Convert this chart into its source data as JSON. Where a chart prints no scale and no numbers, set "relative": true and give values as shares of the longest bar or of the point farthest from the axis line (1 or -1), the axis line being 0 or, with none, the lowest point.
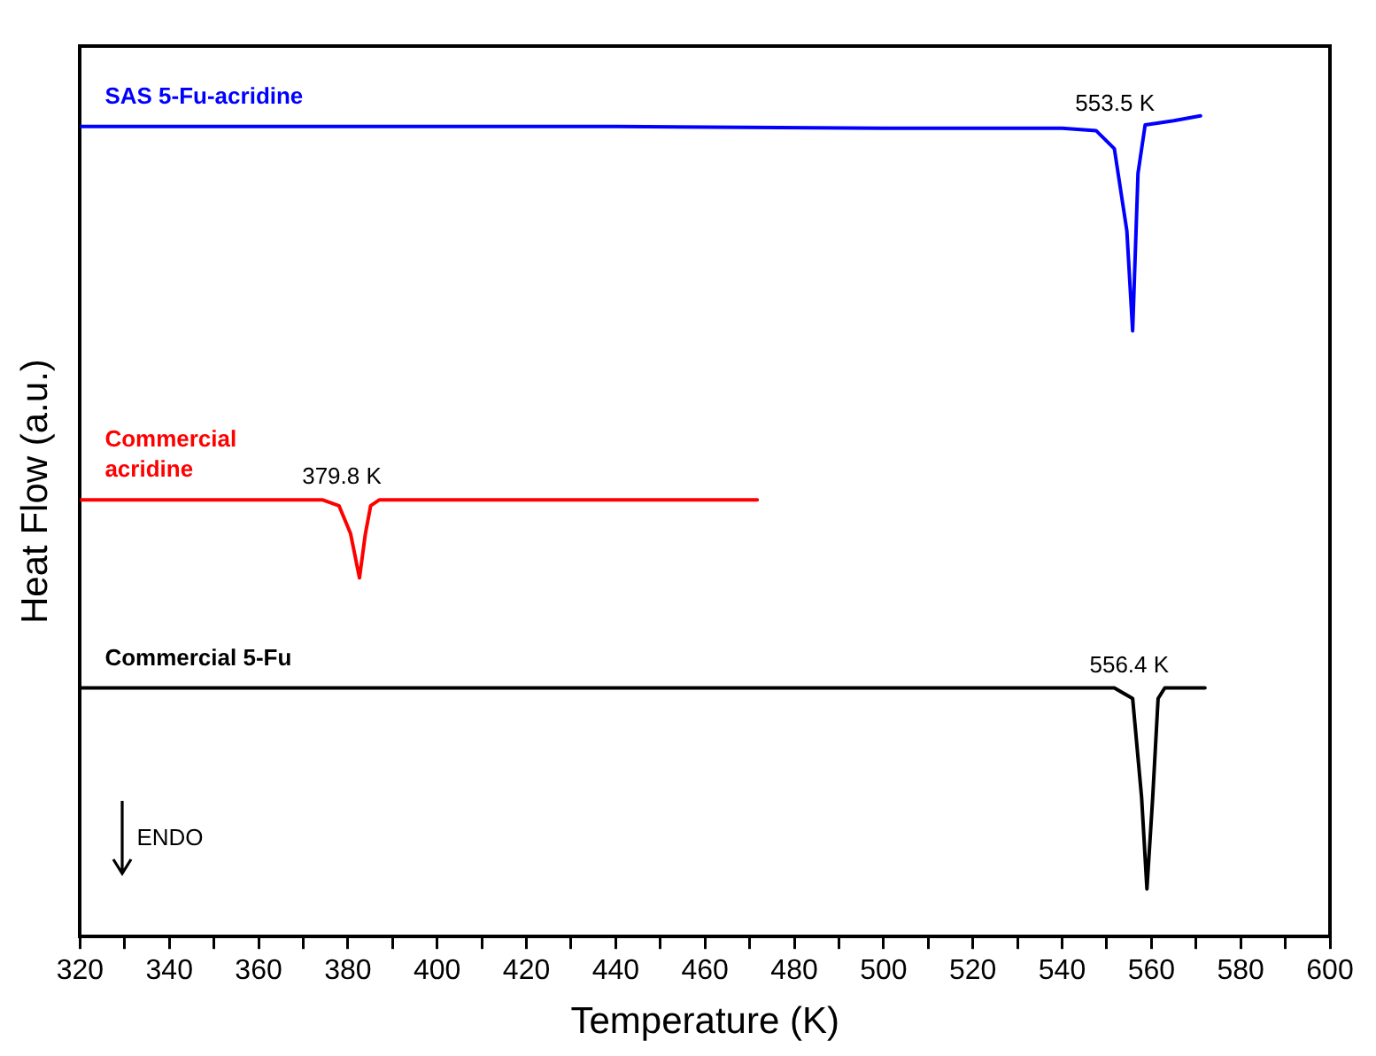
{
  "chart_data": {
    "type": "line",
    "relative": true,
    "xlabel": "Temperature (K)",
    "ylabel": "Heat Flow (a.u.)",
    "xlim": [
      320,
      600
    ],
    "xticks": [
      320,
      {
        "value": 330,
        "label": null
      },
      340,
      {
        "value": 350,
        "label": null
      },
      360,
      {
        "value": 370,
        "label": null
      },
      380,
      {
        "value": 390,
        "label": null
      },
      400,
      {
        "value": 410,
        "label": null
      },
      420,
      {
        "value": 430,
        "label": null
      },
      440,
      {
        "value": 450,
        "label": null
      },
      460,
      {
        "value": 470,
        "label": null
      },
      480,
      {
        "value": 490,
        "label": null
      },
      500,
      {
        "value": 510,
        "label": null
      },
      520,
      {
        "value": 530,
        "label": null
      },
      540,
      {
        "value": 550,
        "label": null
      },
      560,
      {
        "value": 570,
        "label": null
      },
      580,
      {
        "value": 590,
        "label": null
      },
      600
    ],
    "grid": false,
    "legend": false,
    "marker": "none",
    "line_style": "solid",
    "series": [
      {
        "name": "SAS 5-Fu-acridine",
        "color": "#0000ff",
        "x": [
          320,
          440,
          500,
          540,
          547.6,
          551.7,
          554.5,
          555.8,
          557,
          558.6,
          560,
          565,
          571
        ],
        "values": [
          0.987,
          0.987,
          0.985,
          0.985,
          0.982,
          0.96,
          0.86,
          0.738,
          0.93,
          0.989,
          0.99,
          0.994,
          1.0
        ]
      },
      {
        "name": "Commercial acridine",
        "color": "#ff0000",
        "x": [
          320,
          374.4,
          378,
          380.6,
          382.6,
          383.9,
          385.1,
          387,
          430,
          471.7
        ],
        "values": [
          0.532,
          0.532,
          0.525,
          0.491,
          0.437,
          0.49,
          0.525,
          0.532,
          0.532,
          0.532
        ]
      },
      {
        "name": "Commercial 5-Fu",
        "color": "#000000",
        "x": [
          320,
          500,
          551.7,
          555.8,
          557.8,
          559,
          560.3,
          561.5,
          563,
          572
        ],
        "values": [
          0.303,
          0.303,
          0.303,
          0.29,
          0.17,
          0.058,
          0.17,
          0.29,
          0.303,
          0.303
        ]
      }
    ],
    "annotations": [
      "553.5 K",
      "379.8 K",
      "556.4 K",
      "ENDO"
    ]
  }
}
